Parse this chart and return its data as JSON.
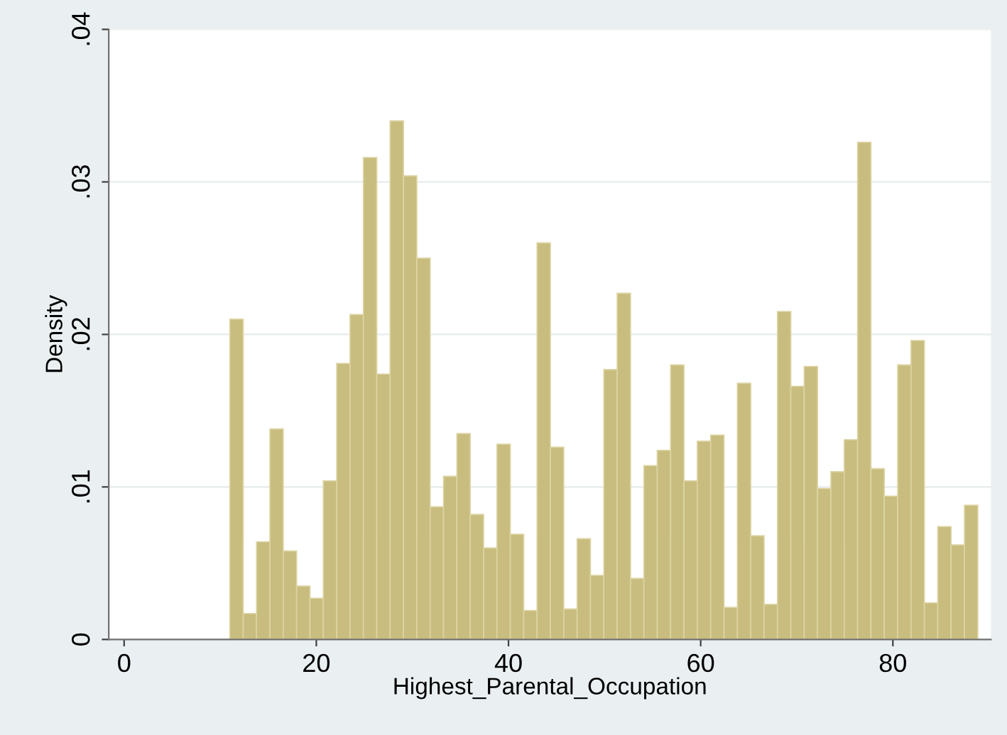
{
  "chart_data": {
    "type": "histogram",
    "xlabel": "Highest_Parental_Occupation",
    "ylabel": "Density",
    "bins": [
      11.0,
      12.39,
      13.78,
      15.17,
      16.56,
      17.95,
      19.34,
      20.73,
      22.12,
      23.51,
      24.9,
      26.29,
      27.68,
      29.07,
      30.46,
      31.85,
      33.24,
      34.63,
      36.02,
      37.41,
      38.8,
      40.19,
      41.58,
      42.97,
      44.36,
      45.75,
      47.14,
      48.53,
      49.92,
      51.31,
      52.7,
      54.09,
      55.48,
      56.87,
      58.26,
      59.65,
      61.04,
      62.43,
      63.82,
      65.21,
      66.6,
      67.99,
      69.38,
      70.77,
      72.16,
      73.55,
      74.94,
      76.33,
      77.72,
      79.11,
      80.5,
      81.89,
      83.28,
      84.67,
      86.06,
      87.45,
      88.84
    ],
    "values": [
      0.021,
      0.0017,
      0.0064,
      0.0138,
      0.0058,
      0.0035,
      0.0027,
      0.0104,
      0.0181,
      0.0213,
      0.0316,
      0.0174,
      0.034,
      0.0304,
      0.025,
      0.0087,
      0.0107,
      0.0135,
      0.0082,
      0.006,
      0.0128,
      0.0069,
      0.0019,
      0.026,
      0.0126,
      0.002,
      0.0066,
      0.0042,
      0.0177,
      0.0227,
      0.004,
      0.0114,
      0.0124,
      0.018,
      0.0104,
      0.013,
      0.0134,
      0.0021,
      0.0168,
      0.0068,
      0.0023,
      0.0215,
      0.0166,
      0.0179,
      0.0099,
      0.011,
      0.0131,
      0.0326,
      0.0112,
      0.0094,
      0.018,
      0.0196,
      0.0024,
      0.0074,
      0.0062,
      0.0088
    ],
    "color": "#c8bd7e",
    "xlim": [
      -1.6,
      90.2
    ],
    "ylim": [
      0,
      0.04
    ],
    "xticks": [
      0,
      20,
      40,
      60,
      80
    ],
    "yticks": [
      0,
      {
        "value": 0.01,
        "label": ".01"
      },
      {
        "value": 0.02,
        "label": ".02"
      },
      {
        "value": 0.03,
        "label": ".03"
      },
      {
        "value": 0.04,
        "label": ".04"
      }
    ],
    "grid": "y"
  }
}
